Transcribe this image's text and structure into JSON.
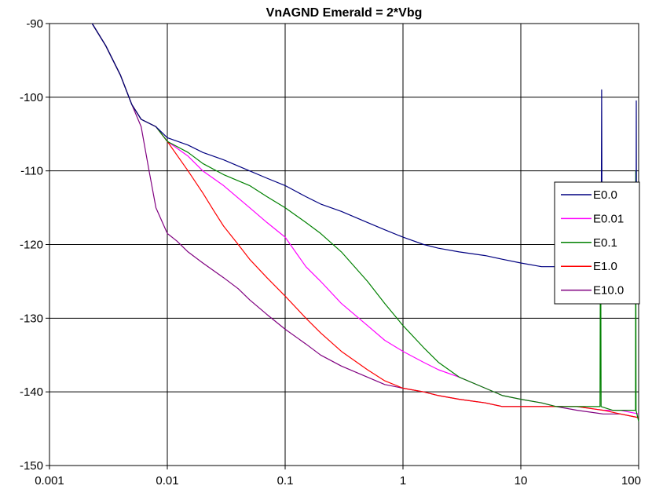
{
  "chart_data": {
    "type": "line",
    "title": "VnAGND Emerald = 2*Vbg",
    "xlabel": "",
    "ylabel": "",
    "x_scale": "log",
    "xlim": [
      0.001,
      100
    ],
    "ylim": [
      -150,
      -90
    ],
    "x_ticks": [
      0.001,
      0.01,
      0.1,
      1,
      10,
      100
    ],
    "x_tick_labels": [
      "0.001",
      "0.01",
      "0.1",
      "1",
      "10",
      "100"
    ],
    "y_ticks": [
      -90,
      -100,
      -110,
      -120,
      -130,
      -140,
      -150
    ],
    "y_tick_labels": [
      "-90",
      "-100",
      "-110",
      "-120",
      "-130",
      "-140",
      "-150"
    ],
    "grid": true,
    "legend_position": "right",
    "series": [
      {
        "name": "E0.0",
        "color": "#000080",
        "x": [
          0.0023,
          0.003,
          0.004,
          0.005,
          0.006,
          0.008,
          0.01,
          0.015,
          0.02,
          0.03,
          0.05,
          0.07,
          0.1,
          0.15,
          0.2,
          0.3,
          0.5,
          0.7,
          1,
          1.5,
          2,
          3,
          5,
          7,
          10,
          15,
          20,
          30,
          40,
          48,
          48.5,
          49,
          50,
          60,
          70,
          80,
          90,
          95,
          95.5,
          96,
          97,
          100
        ],
        "y": [
          -90,
          -93,
          -97,
          -101,
          -103,
          -104,
          -105.5,
          -106.5,
          -107.5,
          -108.5,
          -110,
          -111,
          -112,
          -113.5,
          -114.5,
          -115.5,
          -117,
          -118,
          -119,
          -120,
          -120.5,
          -121,
          -121.5,
          -122,
          -122.5,
          -123,
          -123,
          -123,
          -123,
          -123,
          -99,
          -123,
          -123,
          -123.5,
          -123.5,
          -123.5,
          -123.5,
          -123.5,
          -100.5,
          -123.5,
          -123.5,
          -122
        ]
      },
      {
        "name": "E0.01",
        "color": "#ff00ff",
        "x": [
          0.0023,
          0.003,
          0.004,
          0.005,
          0.006,
          0.008,
          0.01,
          0.015,
          0.02,
          0.03,
          0.05,
          0.07,
          0.1,
          0.15,
          0.2,
          0.3,
          0.5,
          0.7,
          1,
          1.5,
          2,
          3,
          5,
          7,
          10,
          15,
          20,
          30,
          50,
          70,
          100
        ],
        "y": [
          -90,
          -93,
          -97,
          -101,
          -103,
          -104,
          -106,
          -108,
          -110,
          -112,
          -115,
          -117,
          -119,
          -123,
          -125,
          -128,
          -131,
          -133,
          -134.5,
          -136,
          -137,
          -138,
          -139.5,
          -140.5,
          -141,
          -141.5,
          -142,
          -142,
          -142.5,
          -142.5,
          -143
        ]
      },
      {
        "name": "E0.1",
        "color": "#008000",
        "x": [
          0.0023,
          0.003,
          0.004,
          0.005,
          0.006,
          0.008,
          0.01,
          0.015,
          0.02,
          0.03,
          0.05,
          0.07,
          0.1,
          0.15,
          0.2,
          0.3,
          0.5,
          0.7,
          1,
          1.5,
          2,
          3,
          5,
          7,
          10,
          15,
          20,
          30,
          40,
          47,
          47.5,
          48,
          60,
          70,
          80,
          94,
          94.5,
          95,
          100
        ],
        "y": [
          -90,
          -93,
          -97,
          -101,
          -103,
          -104,
          -106,
          -107.5,
          -109,
          -110.5,
          -112,
          -113.5,
          -115,
          -117,
          -118.5,
          -121,
          -125,
          -128,
          -131,
          -134,
          -136,
          -138,
          -139.5,
          -140.5,
          -141,
          -141.5,
          -142,
          -142,
          -142,
          -142,
          -112,
          -142,
          -142.5,
          -142.5,
          -142.5,
          -142.5,
          -110,
          -142.5,
          -144
        ]
      },
      {
        "name": "E1.0",
        "color": "#ff0000",
        "x": [
          0.0023,
          0.003,
          0.004,
          0.005,
          0.006,
          0.008,
          0.01,
          0.015,
          0.02,
          0.025,
          0.03,
          0.04,
          0.05,
          0.07,
          0.1,
          0.15,
          0.2,
          0.3,
          0.5,
          0.7,
          1,
          1.5,
          2,
          3,
          5,
          7,
          10,
          15,
          20,
          30,
          50,
          70,
          100
        ],
        "y": [
          -90,
          -93,
          -97,
          -101,
          -103,
          -104,
          -106,
          -110,
          -113,
          -115.5,
          -117.5,
          -120,
          -122,
          -124.5,
          -127,
          -130,
          -132,
          -134.5,
          -137,
          -138.5,
          -139.5,
          -140,
          -140.5,
          -141,
          -141.5,
          -142,
          -142,
          -142,
          -142,
          -142,
          -142.5,
          -143,
          -143.5
        ]
      },
      {
        "name": "E10.0",
        "color": "#800080",
        "x": [
          0.0023,
          0.003,
          0.004,
          0.005,
          0.006,
          0.007,
          0.008,
          0.01,
          0.012,
          0.015,
          0.02,
          0.03,
          0.04,
          0.05,
          0.07,
          0.1,
          0.15,
          0.2,
          0.3,
          0.5,
          0.7,
          1,
          1.5,
          2,
          3,
          5,
          7,
          10,
          15,
          20,
          30,
          50,
          70,
          100
        ],
        "y": [
          -90,
          -93,
          -97,
          -101,
          -104,
          -110,
          -115,
          -118.5,
          -119.5,
          -121,
          -122.5,
          -124.5,
          -126,
          -127.5,
          -129.5,
          -131.5,
          -133.5,
          -135,
          -136.5,
          -138,
          -139,
          -139.5,
          -140,
          -140.5,
          -141,
          -141.5,
          -142,
          -142,
          -142,
          -142,
          -142.5,
          -143,
          -143,
          -143.5
        ]
      }
    ]
  }
}
